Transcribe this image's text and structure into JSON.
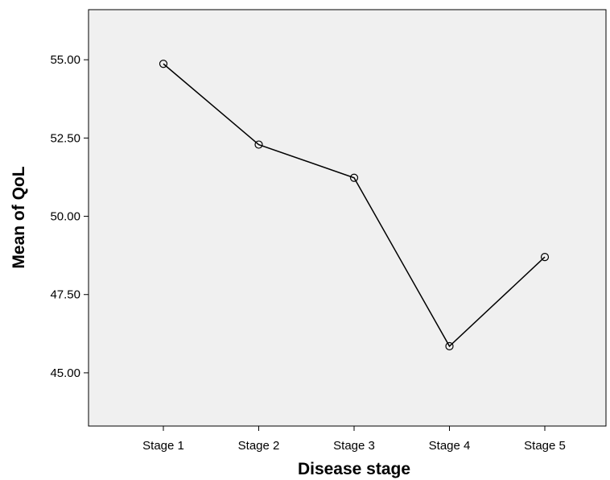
{
  "chart_data": {
    "type": "line",
    "title": "",
    "xlabel": "Disease stage",
    "ylabel": "Mean of QoL",
    "categories": [
      "Stage 1",
      "Stage 2",
      "Stage 3",
      "Stage 4",
      "Stage 5"
    ],
    "series": [
      {
        "values": [
          54.87,
          52.29,
          51.23,
          45.85,
          48.7
        ]
      }
    ],
    "yticks": [
      "45.00",
      "47.50",
      "50.00",
      "52.50",
      "55.00"
    ],
    "ytick_values": [
      45,
      47.5,
      50,
      52.5,
      55
    ],
    "ylim": [
      43.3,
      56.6
    ],
    "grid": false,
    "legend": "none",
    "marker": "open-circle",
    "colors": {
      "plot_background": "#f0f0f0",
      "line": "#000000",
      "axis": "#000000"
    }
  }
}
